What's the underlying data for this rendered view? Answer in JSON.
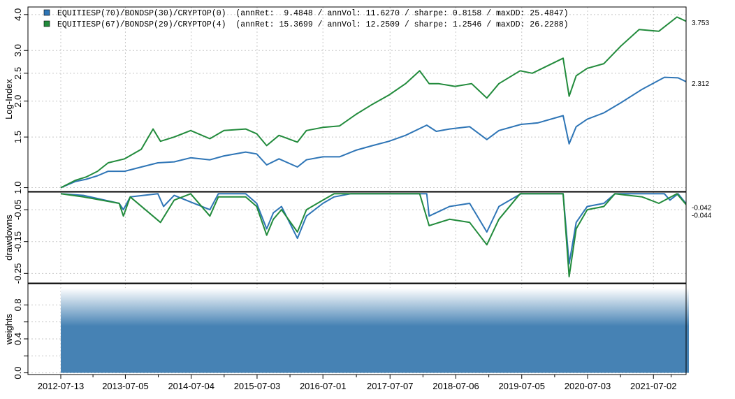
{
  "chart_data": [
    {
      "type": "line",
      "panel": "log-index",
      "ylabel": "Log-Index",
      "log_scale": true,
      "ylim": [
        0.97,
        4.25
      ],
      "yticks": [
        1.0,
        1.5,
        2.0,
        2.5,
        3.0,
        4.0
      ],
      "ytick_labels": [
        "1.0",
        "1.5",
        "2.0",
        "2.5",
        "3.0",
        "4.0"
      ],
      "grid": true,
      "legend_position": "top-left",
      "series": [
        {
          "name": "EQUITIESP(70)/BONDSP(30)/CRYPTOP(0)",
          "legend_label": "EQUITIESP(70)/BONDSP(30)/CRYPTOP(0)  (annRet:  9.4848 / annVol: 11.6270 / sharpe: 0.8158 / maxDD: 25.4847)",
          "color": "#2E75B6",
          "end_label": "2.312",
          "points": [
            [
              "2012-07-13",
              1.0
            ],
            [
              "2012-10-01",
              1.05
            ],
            [
              "2012-12-01",
              1.07
            ],
            [
              "2013-02-01",
              1.1
            ],
            [
              "2013-04-01",
              1.14
            ],
            [
              "2013-07-01",
              1.14
            ],
            [
              "2013-10-01",
              1.18
            ],
            [
              "2014-01-01",
              1.22
            ],
            [
              "2014-04-01",
              1.23
            ],
            [
              "2014-07-01",
              1.27
            ],
            [
              "2014-10-15",
              1.25
            ],
            [
              "2015-01-01",
              1.29
            ],
            [
              "2015-05-01",
              1.33
            ],
            [
              "2015-07-01",
              1.31
            ],
            [
              "2015-08-25",
              1.2
            ],
            [
              "2015-11-01",
              1.26
            ],
            [
              "2016-02-11",
              1.18
            ],
            [
              "2016-04-01",
              1.25
            ],
            [
              "2016-07-01",
              1.28
            ],
            [
              "2016-10-01",
              1.28
            ],
            [
              "2017-01-01",
              1.35
            ],
            [
              "2017-04-01",
              1.4
            ],
            [
              "2017-07-01",
              1.45
            ],
            [
              "2017-10-01",
              1.52
            ],
            [
              "2018-01-26",
              1.65
            ],
            [
              "2018-03-20",
              1.57
            ],
            [
              "2018-06-01",
              1.6
            ],
            [
              "2018-09-20",
              1.63
            ],
            [
              "2018-12-24",
              1.47
            ],
            [
              "2019-03-01",
              1.58
            ],
            [
              "2019-07-01",
              1.66
            ],
            [
              "2019-10-01",
              1.68
            ],
            [
              "2020-02-19",
              1.78
            ],
            [
              "2020-03-23",
              1.42
            ],
            [
              "2020-05-01",
              1.63
            ],
            [
              "2020-07-01",
              1.73
            ],
            [
              "2020-10-01",
              1.82
            ],
            [
              "2021-01-01",
              1.97
            ],
            [
              "2021-05-01",
              2.2
            ],
            [
              "2021-09-01",
              2.42
            ],
            [
              "2021-11-15",
              2.41
            ],
            [
              "2022-01-14",
              2.312
            ]
          ]
        },
        {
          "name": "EQUITIESP(67)/BONDSP(29)/CRYPTOP(4)",
          "legend_label": "EQUITIESP(67)/BONDSP(29)/CRYPTOP(4)  (annRet: 15.3699 / annVol: 12.2509 / sharpe: 1.2546 / maxDD: 26.2288)",
          "color": "#228B3C",
          "end_label": "3.753",
          "points": [
            [
              "2012-07-13",
              1.0
            ],
            [
              "2012-10-01",
              1.06
            ],
            [
              "2012-12-01",
              1.09
            ],
            [
              "2013-02-01",
              1.14
            ],
            [
              "2013-04-01",
              1.22
            ],
            [
              "2013-07-01",
              1.26
            ],
            [
              "2013-10-01",
              1.36
            ],
            [
              "2013-12-05",
              1.6
            ],
            [
              "2014-01-15",
              1.45
            ],
            [
              "2014-04-01",
              1.5
            ],
            [
              "2014-07-01",
              1.58
            ],
            [
              "2014-10-15",
              1.48
            ],
            [
              "2015-01-01",
              1.58
            ],
            [
              "2015-05-01",
              1.6
            ],
            [
              "2015-07-01",
              1.54
            ],
            [
              "2015-08-25",
              1.4
            ],
            [
              "2015-11-01",
              1.52
            ],
            [
              "2016-02-11",
              1.44
            ],
            [
              "2016-04-01",
              1.58
            ],
            [
              "2016-07-01",
              1.62
            ],
            [
              "2016-10-01",
              1.64
            ],
            [
              "2017-01-01",
              1.8
            ],
            [
              "2017-04-01",
              1.95
            ],
            [
              "2017-07-01",
              2.1
            ],
            [
              "2017-10-01",
              2.3
            ],
            [
              "2017-12-18",
              2.55
            ],
            [
              "2018-02-08",
              2.3
            ],
            [
              "2018-04-01",
              2.3
            ],
            [
              "2018-07-01",
              2.25
            ],
            [
              "2018-10-01",
              2.3
            ],
            [
              "2018-12-24",
              2.05
            ],
            [
              "2019-03-01",
              2.3
            ],
            [
              "2019-06-26",
              2.55
            ],
            [
              "2019-09-01",
              2.5
            ],
            [
              "2020-02-19",
              2.82
            ],
            [
              "2020-03-23",
              2.08
            ],
            [
              "2020-05-01",
              2.45
            ],
            [
              "2020-07-01",
              2.6
            ],
            [
              "2020-10-01",
              2.7
            ],
            [
              "2021-01-01",
              3.1
            ],
            [
              "2021-04-14",
              3.55
            ],
            [
              "2021-08-01",
              3.5
            ],
            [
              "2021-11-09",
              3.92
            ],
            [
              "2022-01-14",
              3.753
            ]
          ]
        }
      ]
    },
    {
      "type": "line",
      "panel": "drawdowns",
      "ylabel": "drawdowns",
      "ylim": [
        -0.28,
        0.005
      ],
      "yticks": [
        -0.05,
        -0.15,
        -0.25
      ],
      "ytick_labels": [
        "-0.05",
        "-0.15",
        "-0.25"
      ],
      "grid": true,
      "series": [
        {
          "name": "EQUITIESP(70)/BONDSP(30)/CRYPTOP(0)",
          "color": "#2E75B6",
          "end_label": "-0.042",
          "points": [
            [
              "2012-07-13",
              0.0
            ],
            [
              "2012-11-15",
              -0.005
            ],
            [
              "2013-06-01",
              -0.03
            ],
            [
              "2013-06-24",
              -0.05
            ],
            [
              "2013-08-01",
              -0.01
            ],
            [
              "2014-01-01",
              0.0
            ],
            [
              "2014-02-01",
              -0.04
            ],
            [
              "2014-04-01",
              -0.005
            ],
            [
              "2014-10-15",
              -0.05
            ],
            [
              "2014-12-01",
              0.0
            ],
            [
              "2015-05-01",
              0.0
            ],
            [
              "2015-07-01",
              -0.03
            ],
            [
              "2015-08-25",
              -0.11
            ],
            [
              "2015-10-01",
              -0.06
            ],
            [
              "2015-11-15",
              -0.04
            ],
            [
              "2016-02-11",
              -0.14
            ],
            [
              "2016-04-01",
              -0.07
            ],
            [
              "2016-07-01",
              -0.03
            ],
            [
              "2016-09-01",
              -0.01
            ],
            [
              "2016-12-01",
              0.0
            ],
            [
              "2017-10-01",
              0.0
            ],
            [
              "2018-01-26",
              0.0
            ],
            [
              "2018-02-08",
              -0.07
            ],
            [
              "2018-06-01",
              -0.04
            ],
            [
              "2018-09-20",
              -0.03
            ],
            [
              "2018-12-24",
              -0.12
            ],
            [
              "2019-03-01",
              -0.04
            ],
            [
              "2019-07-01",
              0.0
            ],
            [
              "2020-02-19",
              0.0
            ],
            [
              "2020-03-23",
              -0.22
            ],
            [
              "2020-05-01",
              -0.09
            ],
            [
              "2020-07-01",
              -0.04
            ],
            [
              "2020-10-01",
              -0.03
            ],
            [
              "2020-12-01",
              0.0
            ],
            [
              "2021-09-01",
              0.0
            ],
            [
              "2021-10-01",
              -0.02
            ],
            [
              "2021-11-15",
              0.0
            ],
            [
              "2022-01-14",
              -0.042
            ]
          ]
        },
        {
          "name": "EQUITIESP(67)/BONDSP(29)/CRYPTOP(4)",
          "color": "#228B3C",
          "end_label": "-0.044",
          "points": [
            [
              "2012-07-13",
              0.0
            ],
            [
              "2012-11-15",
              -0.01
            ],
            [
              "2013-06-01",
              -0.03
            ],
            [
              "2013-06-24",
              -0.07
            ],
            [
              "2013-08-01",
              -0.01
            ],
            [
              "2014-01-15",
              -0.09
            ],
            [
              "2014-04-01",
              -0.02
            ],
            [
              "2014-07-01",
              0.0
            ],
            [
              "2014-10-15",
              -0.07
            ],
            [
              "2014-12-01",
              -0.01
            ],
            [
              "2015-05-01",
              -0.01
            ],
            [
              "2015-07-01",
              -0.04
            ],
            [
              "2015-08-25",
              -0.13
            ],
            [
              "2015-10-01",
              -0.08
            ],
            [
              "2015-11-15",
              -0.05
            ],
            [
              "2016-02-11",
              -0.12
            ],
            [
              "2016-04-01",
              -0.05
            ],
            [
              "2016-07-01",
              -0.02
            ],
            [
              "2016-09-01",
              0.0
            ],
            [
              "2016-12-01",
              0.0
            ],
            [
              "2017-10-01",
              0.0
            ],
            [
              "2017-12-18",
              0.0
            ],
            [
              "2018-02-08",
              -0.1
            ],
            [
              "2018-06-01",
              -0.08
            ],
            [
              "2018-09-20",
              -0.09
            ],
            [
              "2018-12-24",
              -0.16
            ],
            [
              "2019-03-01",
              -0.08
            ],
            [
              "2019-06-26",
              0.0
            ],
            [
              "2020-02-19",
              0.0
            ],
            [
              "2020-03-23",
              -0.26
            ],
            [
              "2020-05-01",
              -0.11
            ],
            [
              "2020-07-01",
              -0.05
            ],
            [
              "2020-10-01",
              -0.04
            ],
            [
              "2020-12-01",
              0.0
            ],
            [
              "2021-05-01",
              -0.01
            ],
            [
              "2021-08-01",
              -0.03
            ],
            [
              "2021-11-09",
              0.0
            ],
            [
              "2022-01-14",
              -0.044
            ]
          ]
        }
      ]
    },
    {
      "type": "area",
      "panel": "weights",
      "ylabel": "weights",
      "ylim": [
        -0.02,
        1.05
      ],
      "yticks": [
        0.0,
        0.4,
        0.8
      ],
      "ytick_labels": [
        "0.0",
        "0.4",
        "0.8"
      ],
      "minor_yticks": [
        0.2,
        0.6
      ],
      "grid": true,
      "fill_color": "#4682B4",
      "start": "2012-07-13",
      "end": "2022-01-14",
      "value": 1.0
    }
  ],
  "x_axis": {
    "start": "2012-07-13",
    "end": "2022-01-14",
    "ticks": [
      "2012-07-13",
      "2013-07-05",
      "2014-07-04",
      "2015-07-03",
      "2016-07-01",
      "2017-07-07",
      "2018-07-06",
      "2019-07-05",
      "2020-07-03",
      "2021-07-02"
    ]
  }
}
